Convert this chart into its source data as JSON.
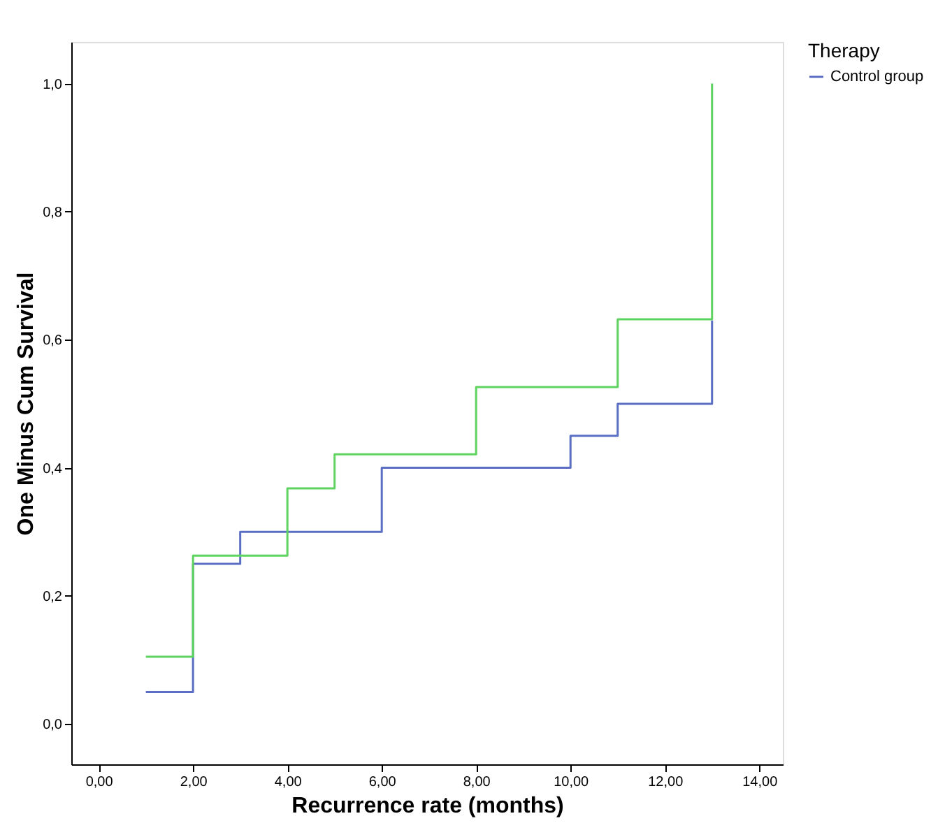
{
  "chart_data": {
    "type": "step",
    "xlabel": "Recurrence rate (months)",
    "ylabel": "One Minus Cum Survival",
    "legend_title": "Therapy",
    "legend": "top right",
    "grid": false,
    "marker": "none",
    "line_style": "solid",
    "xlim": [
      -0.58,
      14.5
    ],
    "ylim": [
      -0.063,
      1.065
    ],
    "xticks": [
      {
        "value": 0,
        "label": "0,00"
      },
      {
        "value": 2,
        "label": "2,00"
      },
      {
        "value": 4,
        "label": "4,00"
      },
      {
        "value": 6,
        "label": "6,00"
      },
      {
        "value": 8,
        "label": "8,00"
      },
      {
        "value": 10,
        "label": "10,00"
      },
      {
        "value": 12,
        "label": "12,00"
      },
      {
        "value": 14,
        "label": "14,00"
      }
    ],
    "yticks": [
      {
        "value": 0,
        "label": "0,0"
      },
      {
        "value": 0.2,
        "label": "0,2"
      },
      {
        "value": 0.4,
        "label": "0,4"
      },
      {
        "value": 0.6,
        "label": "0,6"
      },
      {
        "value": 0.8,
        "label": "0,8"
      },
      {
        "value": 1,
        "label": "1,0"
      }
    ],
    "series": [
      {
        "name": "Control group",
        "color": "#5a6fc4",
        "x": [
          1,
          2,
          3,
          6,
          10,
          11,
          13
        ],
        "values": [
          0.05,
          0.25,
          0.3,
          0.4,
          0.45,
          0.5,
          0.63
        ]
      },
      {
        "color": "#5fd35f",
        "x": [
          1,
          2,
          4,
          5,
          8,
          11,
          13
        ],
        "values": [
          0.105,
          0.263,
          0.368,
          0.421,
          0.526,
          0.632,
          1.0
        ]
      }
    ]
  }
}
